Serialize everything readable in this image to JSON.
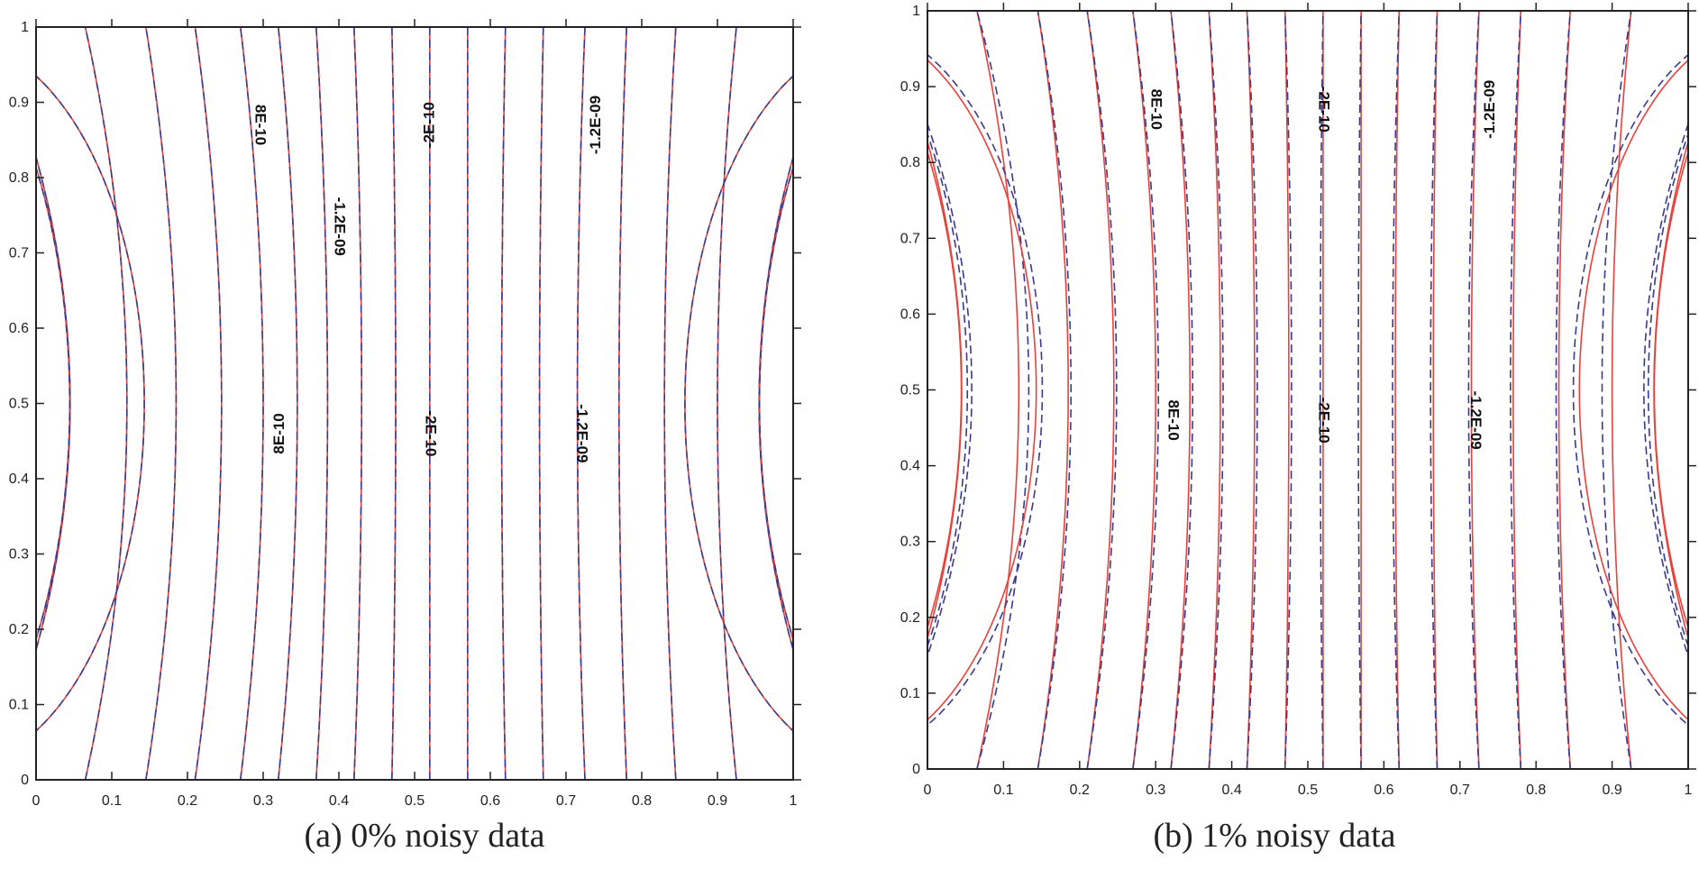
{
  "colors": {
    "exact_line": "#e8403a",
    "approx_line": "#3a3a8c",
    "axis": "#222222"
  },
  "chart_data": [
    {
      "type": "contour",
      "caption": "(a) 0% noisy data",
      "xlim": [
        0,
        1
      ],
      "ylim": [
        0,
        1
      ],
      "x_ticks": [
        "0",
        "0.1",
        "0.2",
        "0.3",
        "0.4",
        "0.5",
        "0.6",
        "0.7",
        "0.8",
        "0.9",
        "1"
      ],
      "y_ticks": [
        "0",
        "0.1",
        "0.2",
        "0.3",
        "0.4",
        "0.5",
        "0.6",
        "0.7",
        "0.8",
        "0.9",
        "1"
      ],
      "line_styles": [
        "solid red",
        "dashed blue"
      ],
      "contour_x_at_mid": [
        0.045,
        0.12,
        0.19,
        0.25,
        0.3,
        0.345,
        0.385,
        0.43,
        0.475,
        0.52,
        0.57,
        0.615,
        0.665,
        0.715,
        0.77,
        0.83,
        0.9,
        0.96
      ],
      "contour_x_at_edge": [
        -0.01,
        0.065,
        0.145,
        0.21,
        0.27,
        0.32,
        0.37,
        0.42,
        0.47,
        0.52,
        0.57,
        0.62,
        0.67,
        0.725,
        0.78,
        0.845,
        0.925,
        1.005
      ],
      "contour_y_top_end": [
        0.955,
        1,
        1,
        1,
        1,
        1,
        1,
        1,
        1,
        1,
        1,
        1,
        1,
        1,
        1,
        1,
        1,
        1
      ],
      "left_edge_contours": [
        {
          "x_mid": 0.045,
          "y_low": 0.25,
          "y_high": 0.75
        }
      ],
      "right_edge_contours": [
        {
          "x_mid": 0.955,
          "y_low": 0.22,
          "y_high": 0.78
        }
      ],
      "labels": [
        {
          "text": "8E-10",
          "x": 0.295,
          "y": 0.87,
          "rot": 90
        },
        {
          "text": "-2E-10",
          "x": 0.52,
          "y": 0.87,
          "rot": -90
        },
        {
          "text": "-1.2E-09",
          "x": 0.74,
          "y": 0.87,
          "rot": -90
        },
        {
          "text": "-1.2E-09",
          "x": 0.4,
          "y": 0.735,
          "rot": 90
        },
        {
          "text": "8E-10",
          "x": 0.322,
          "y": 0.46,
          "rot": -90
        },
        {
          "text": "-2E-10",
          "x": 0.52,
          "y": 0.46,
          "rot": 90
        },
        {
          "text": "-1.2E-09",
          "x": 0.72,
          "y": 0.46,
          "rot": 90
        }
      ]
    },
    {
      "type": "contour",
      "caption": "(b) 1% noisy data",
      "xlim": [
        0,
        1
      ],
      "ylim": [
        0,
        1
      ],
      "x_ticks": [
        "0",
        "0.1",
        "0.2",
        "0.3",
        "0.4",
        "0.5",
        "0.6",
        "0.7",
        "0.8",
        "0.9",
        "1"
      ],
      "y_ticks": [
        "0",
        "0.1",
        "0.2",
        "0.3",
        "0.4",
        "0.5",
        "0.6",
        "0.7",
        "0.8",
        "0.9",
        "1"
      ],
      "line_styles": [
        "solid red",
        "dashed blue"
      ],
      "labels": [
        {
          "text": "8E-10",
          "x": 0.3,
          "y": 0.87,
          "rot": 90
        },
        {
          "text": "-2E-10",
          "x": 0.52,
          "y": 0.87,
          "rot": 90
        },
        {
          "text": "-1.2E-09",
          "x": 0.74,
          "y": 0.87,
          "rot": -90
        },
        {
          "text": "8E-10",
          "x": 0.322,
          "y": 0.46,
          "rot": 90
        },
        {
          "text": "-2E-10",
          "x": 0.52,
          "y": 0.46,
          "rot": 90
        },
        {
          "text": "-1.2E-09",
          "x": 0.72,
          "y": 0.46,
          "rot": 90
        }
      ]
    }
  ]
}
